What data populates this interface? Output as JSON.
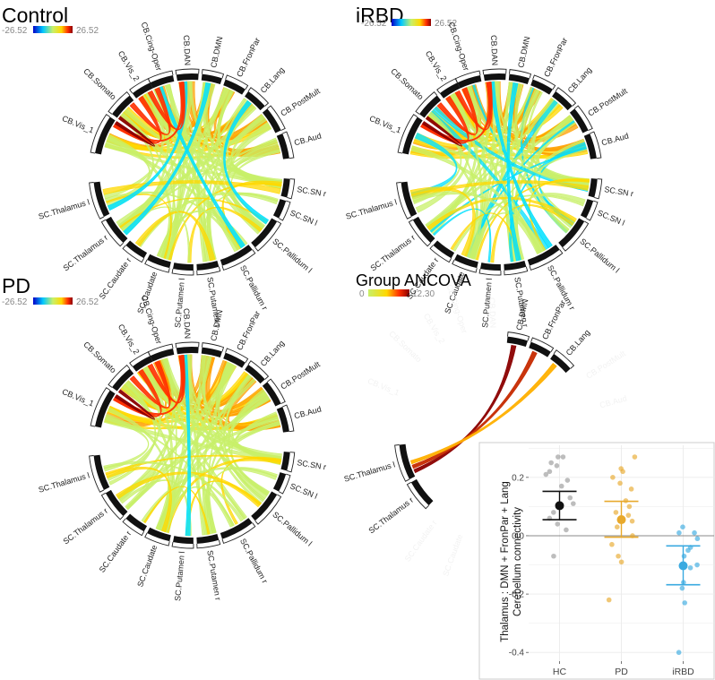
{
  "panels": [
    {
      "id": "control",
      "title": "Control",
      "colorbar": {
        "min_label": "-26.52",
        "max_label": "26.52"
      },
      "regions": [
        "CB.Cing-Oper",
        "CB.DAN",
        "CB.DMN",
        "CB.FronPar",
        "CB.Lang",
        "CB.PostMult",
        "CB.Aud",
        "SC.SN r",
        "SC.SN l",
        "SC.Pallidum l",
        "SC.Pallidum r",
        "SC.Putamen r",
        "SC.Putamen l",
        "SC.Caudate",
        "SC.Caudate r",
        "SC.Thalamus r",
        "SC.Thalamus l",
        "CB.Vis_1",
        "CB.Somato",
        "CB.Vis_2"
      ]
    },
    {
      "id": "irbd",
      "title": "iRBD",
      "colorbar": {
        "min_label": "-26.52",
        "max_label": "26.52"
      },
      "regions": [
        "CB.Cing-Oper",
        "CB.DAN",
        "CB.DMN",
        "CB.FronPar",
        "CB.Lang",
        "CB.PostMult",
        "CB.Aud",
        "SC.SN r",
        "SC.SN l",
        "SC.Pallidum l",
        "SC.Pallidum r",
        "SC.Putamen r",
        "SC.Putamen l",
        "SC.Caudate",
        "SC.Caudate r",
        "SC.Thalamus r",
        "SC.Thalamus l",
        "CB.Vis_1",
        "CB.Somato",
        "CB.Vis_2"
      ]
    },
    {
      "id": "pd",
      "title": "PD",
      "colorbar": {
        "min_label": "-26.52",
        "max_label": "26.52"
      },
      "regions": [
        "CB.Cing-Oper",
        "CB.DAN",
        "CB.DMN",
        "CB.FronPar",
        "CB.Lang",
        "CB.PostMult",
        "CB.Aud",
        "SC.SN r",
        "SC.SN l",
        "SC.Pallidum l",
        "SC.Pallidum r",
        "SC.Putamen r",
        "SC.Putamen l",
        "SC.Caudate",
        "SC.Caudate r",
        "SC.Thalamus r",
        "SC.Thalamus l",
        "CB.Vis_1",
        "CB.Somato",
        "CB.Vis_2"
      ]
    },
    {
      "id": "ancova",
      "title": "Group ANCOVA",
      "colorbar": {
        "min_label": "0",
        "max_label": "12.30"
      },
      "labels_shown": [
        "CB.DMN",
        "CB.FronPar",
        "CB.Lang",
        "SC.Thalamus l",
        "SC.Thalamus r"
      ],
      "significant_connection": {
        "from": "SC.Thalamus l",
        "to": [
          "CB.DMN",
          "CB.FronPar",
          "CB.Lang"
        ]
      }
    }
  ],
  "colors": {
    "negative_high": "#0000ff",
    "negative_mid": "#00e0ff",
    "neutral": "#c8f06a",
    "positive_mid": "#ffd800",
    "positive_high": "#ff3000",
    "positive_max": "#8b0000",
    "hc": "#111111",
    "pd": "#e8a92c",
    "irbd": "#3aaae0"
  },
  "chart_data": {
    "type": "scatter",
    "ylabel_line1": "Thalamus : DMN + FronPar + Lang",
    "ylabel_line2": "Cerebellum connectivity",
    "categories": [
      "HC",
      "PD",
      "iRBD"
    ],
    "ylim": [
      -0.43,
      0.31
    ],
    "yticks": [
      0.2,
      0.0,
      -0.2,
      -0.4
    ],
    "ytick_labels": [
      "0.2",
      "0.0",
      "-0.2",
      "-0.4"
    ],
    "grid": true,
    "zero_line": true,
    "series": [
      {
        "category": "HC",
        "mean": 0.103,
        "ci_low": 0.055,
        "ci_high": 0.152,
        "points": [
          0.27,
          0.27,
          0.25,
          0.24,
          0.22,
          0.21,
          0.19,
          0.17,
          0.13,
          0.11,
          0.08,
          0.06,
          0.04,
          0.02,
          -0.07
        ]
      },
      {
        "category": "PD",
        "mean": 0.055,
        "ci_low": -0.005,
        "ci_high": 0.118,
        "points": [
          0.27,
          0.23,
          0.22,
          0.2,
          0.18,
          0.16,
          0.12,
          0.1,
          0.08,
          0.07,
          0.05,
          0.03,
          0.0,
          -0.03,
          -0.07,
          -0.09,
          -0.22
        ]
      },
      {
        "category": "iRBD",
        "mean": -0.103,
        "ci_low": -0.168,
        "ci_high": -0.035,
        "points": [
          0.03,
          0.01,
          0.01,
          -0.01,
          -0.04,
          -0.05,
          -0.07,
          -0.1,
          -0.11,
          -0.16,
          -0.18,
          -0.23,
          -0.4
        ]
      }
    ]
  }
}
